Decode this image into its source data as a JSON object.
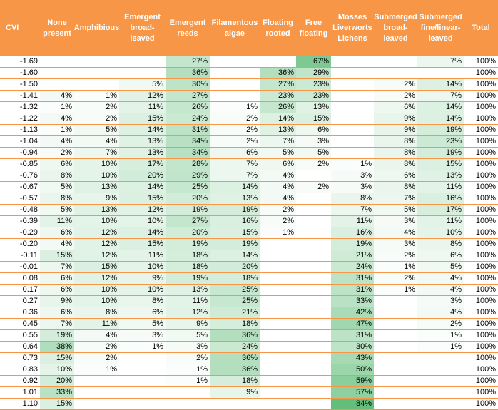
{
  "chart_data": {
    "type": "table",
    "columns": [
      "CVI",
      "None\npresent",
      "Amphibious",
      "Emergent\nbroad-\nleaved",
      "Emergent\nreeds",
      "Filamentous\nalgae",
      "Floating\nrooted",
      "Free\nfloating",
      "Mosses\nLiverworts\nLichens",
      "Submerged\nbroad-\nleaved",
      "Submerged\nfine/linear-\nleaved",
      "Total"
    ],
    "rows": [
      [
        "-1.69",
        "",
        "",
        "",
        "27%",
        "",
        "",
        "67%",
        "",
        "",
        "7%",
        "100%"
      ],
      [
        "-1.60",
        "",
        "",
        "",
        "36%",
        "",
        "36%",
        "29%",
        "",
        "",
        "",
        "100%"
      ],
      [
        "-1.50",
        "",
        "",
        "5%",
        "30%",
        "",
        "27%",
        "23%",
        "",
        "2%",
        "14%",
        "100%"
      ],
      [
        "-1.41",
        "4%",
        "1%",
        "12%",
        "27%",
        "",
        "23%",
        "23%",
        "",
        "2%",
        "7%",
        "100%"
      ],
      [
        "-1.32",
        "1%",
        "2%",
        "11%",
        "26%",
        "1%",
        "26%",
        "13%",
        "",
        "6%",
        "14%",
        "100%"
      ],
      [
        "-1.22",
        "4%",
        "2%",
        "15%",
        "24%",
        "2%",
        "14%",
        "15%",
        "",
        "9%",
        "14%",
        "100%"
      ],
      [
        "-1.13",
        "1%",
        "5%",
        "14%",
        "31%",
        "2%",
        "13%",
        "6%",
        "",
        "9%",
        "19%",
        "100%"
      ],
      [
        "-1.04",
        "4%",
        "4%",
        "13%",
        "34%",
        "2%",
        "7%",
        "3%",
        "",
        "8%",
        "23%",
        "100%"
      ],
      [
        "-0.94",
        "2%",
        "7%",
        "13%",
        "34%",
        "6%",
        "5%",
        "5%",
        "",
        "8%",
        "19%",
        "100%"
      ],
      [
        "-0.85",
        "6%",
        "10%",
        "17%",
        "28%",
        "7%",
        "6%",
        "2%",
        "1%",
        "8%",
        "15%",
        "100%"
      ],
      [
        "-0.76",
        "8%",
        "10%",
        "20%",
        "29%",
        "7%",
        "4%",
        "",
        "3%",
        "6%",
        "13%",
        "100%"
      ],
      [
        "-0.67",
        "5%",
        "13%",
        "14%",
        "25%",
        "14%",
        "4%",
        "2%",
        "3%",
        "8%",
        "11%",
        "100%"
      ],
      [
        "-0.57",
        "8%",
        "9%",
        "15%",
        "20%",
        "13%",
        "4%",
        "",
        "8%",
        "7%",
        "16%",
        "100%"
      ],
      [
        "-0.48",
        "5%",
        "13%",
        "12%",
        "19%",
        "19%",
        "2%",
        "",
        "7%",
        "5%",
        "17%",
        "100%"
      ],
      [
        "-0.39",
        "11%",
        "10%",
        "10%",
        "27%",
        "16%",
        "2%",
        "",
        "11%",
        "3%",
        "11%",
        "100%"
      ],
      [
        "-0.29",
        "6%",
        "12%",
        "14%",
        "20%",
        "15%",
        "1%",
        "",
        "16%",
        "4%",
        "10%",
        "100%"
      ],
      [
        "-0.20",
        "4%",
        "12%",
        "15%",
        "19%",
        "19%",
        "",
        "",
        "19%",
        "3%",
        "8%",
        "100%"
      ],
      [
        "-0.11",
        "15%",
        "12%",
        "11%",
        "18%",
        "14%",
        "",
        "",
        "21%",
        "2%",
        "6%",
        "100%"
      ],
      [
        "-0.01",
        "7%",
        "15%",
        "10%",
        "18%",
        "20%",
        "",
        "",
        "24%",
        "1%",
        "5%",
        "100%"
      ],
      [
        "0.08",
        "6%",
        "12%",
        "9%",
        "19%",
        "18%",
        "",
        "",
        "31%",
        "2%",
        "4%",
        "100%"
      ],
      [
        "0.17",
        "6%",
        "10%",
        "10%",
        "13%",
        "25%",
        "",
        "",
        "31%",
        "1%",
        "4%",
        "100%"
      ],
      [
        "0.27",
        "9%",
        "10%",
        "8%",
        "11%",
        "25%",
        "",
        "",
        "33%",
        "",
        "3%",
        "100%"
      ],
      [
        "0.36",
        "6%",
        "8%",
        "6%",
        "12%",
        "21%",
        "",
        "",
        "42%",
        "",
        "4%",
        "100%"
      ],
      [
        "0.45",
        "7%",
        "11%",
        "5%",
        "9%",
        "18%",
        "",
        "",
        "47%",
        "",
        "2%",
        "100%"
      ],
      [
        "0.55",
        "19%",
        "4%",
        "3%",
        "5%",
        "36%",
        "",
        "",
        "31%",
        "",
        "1%",
        "100%"
      ],
      [
        "0.64",
        "38%",
        "2%",
        "1%",
        "3%",
        "24%",
        "",
        "",
        "30%",
        "",
        "1%",
        "100%"
      ],
      [
        "0.73",
        "15%",
        "2%",
        "",
        "2%",
        "36%",
        "",
        "",
        "43%",
        "",
        "",
        "100%"
      ],
      [
        "0.83",
        "10%",
        "1%",
        "",
        "1%",
        "36%",
        "",
        "",
        "50%",
        "",
        "",
        "100%"
      ],
      [
        "0.92",
        "20%",
        "",
        "",
        "1%",
        "18%",
        "",
        "",
        "59%",
        "",
        "",
        "100%"
      ],
      [
        "1.01",
        "33%",
        "",
        "",
        "",
        "9%",
        "",
        "",
        "57%",
        "",
        "",
        "100%"
      ],
      [
        "1.10",
        "15%",
        "",
        "",
        "",
        "",
        "",
        "",
        "84%",
        "",
        "",
        "100%"
      ]
    ],
    "colors": {
      "header_bg": "#f79646",
      "header_text": "#ffffff",
      "row_border": "#f79646",
      "heat_low": "#ffffff",
      "heat_high": "#63be7b"
    }
  }
}
